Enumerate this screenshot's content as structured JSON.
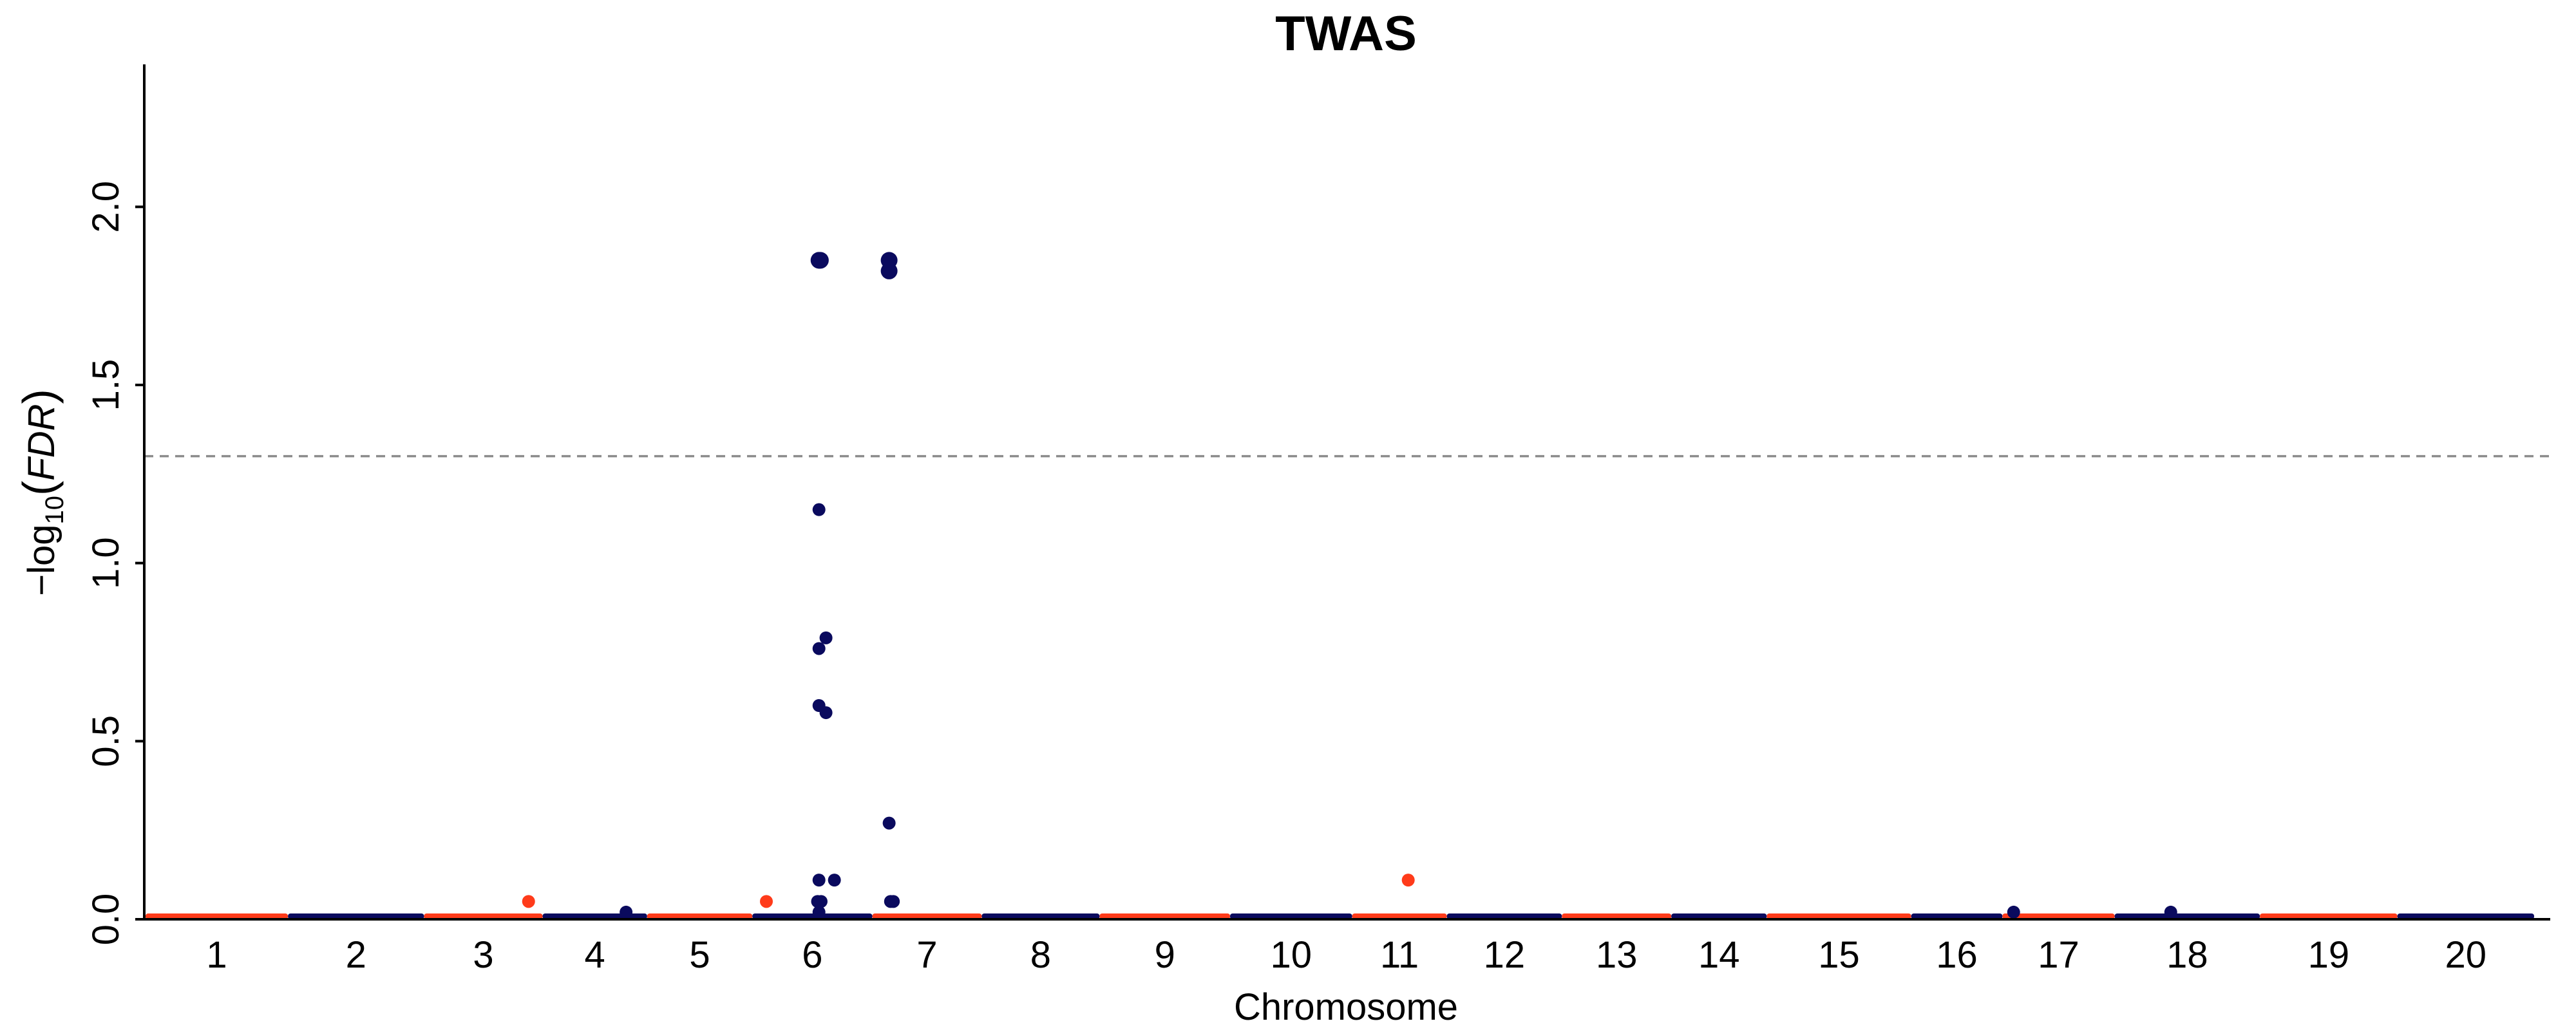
{
  "chart_data": {
    "type": "scatter",
    "title": "TWAS",
    "xlabel": "Chromosome",
    "ylabel_parts": {
      "prefix": "−log",
      "sub": "10",
      "paren_open": "(",
      "var": "FDR",
      "paren_close": ")"
    },
    "ylim": [
      0,
      2.4
    ],
    "yticks": [
      0.0,
      0.5,
      1.0,
      1.5,
      2.0
    ],
    "ytick_labels": [
      "0.0",
      "0.5",
      "1.0",
      "1.5",
      "2.0"
    ],
    "threshold": 1.3,
    "colors": {
      "odd": "#ff3b1a",
      "even": "#0a0a5e",
      "threshold": "#8c8c8c"
    },
    "xlim": [
      0,
      21.7
    ],
    "chromosomes": [
      {
        "label": "1",
        "start": 0.0,
        "end": 2.03
      },
      {
        "label": "2",
        "start": 2.03,
        "end": 3.97
      },
      {
        "label": "3",
        "start": 3.97,
        "end": 5.66
      },
      {
        "label": "4",
        "start": 5.66,
        "end": 7.15
      },
      {
        "label": "5",
        "start": 7.15,
        "end": 8.65
      },
      {
        "label": "6",
        "start": 8.65,
        "end": 10.36
      },
      {
        "label": "7",
        "start": 10.36,
        "end": 11.92
      },
      {
        "label": "8",
        "start": 11.92,
        "end": 13.6
      },
      {
        "label": "9",
        "start": 13.6,
        "end": 15.46
      },
      {
        "label": "10",
        "start": 15.46,
        "end": 17.2
      },
      {
        "label": "11",
        "start": 17.2,
        "end": 18.55
      },
      {
        "label": "12",
        "start": 18.55,
        "end": 20.19
      },
      {
        "label": "13",
        "start": 20.19,
        "end": 21.75
      },
      {
        "label": "14",
        "start": 21.75,
        "end": 23.11
      },
      {
        "label": "15",
        "start": 23.11,
        "end": 25.17
      },
      {
        "label": "16",
        "start": 25.17,
        "end": 26.47
      },
      {
        "label": "17",
        "start": 26.47,
        "end": 28.07
      },
      {
        "label": "18",
        "start": 28.07,
        "end": 30.14
      },
      {
        "label": "19",
        "start": 30.14,
        "end": 32.1
      },
      {
        "label": "20",
        "start": 32.1,
        "end": 34.05
      }
    ],
    "points": [
      {
        "chr": 6,
        "pos": 9.6,
        "y": 1.85,
        "size": "large"
      },
      {
        "chr": 6,
        "pos": 9.62,
        "y": 1.85,
        "size": "large"
      },
      {
        "chr": 6,
        "pos": 10.6,
        "y": 1.85,
        "size": "large"
      },
      {
        "chr": 6,
        "pos": 10.6,
        "y": 1.82,
        "size": "large"
      },
      {
        "chr": 6,
        "pos": 9.6,
        "y": 1.15,
        "size": "small"
      },
      {
        "chr": 6,
        "pos": 9.7,
        "y": 0.79,
        "size": "small"
      },
      {
        "chr": 6,
        "pos": 9.6,
        "y": 0.76,
        "size": "small"
      },
      {
        "chr": 6,
        "pos": 9.6,
        "y": 0.6,
        "size": "small"
      },
      {
        "chr": 6,
        "pos": 9.7,
        "y": 0.58,
        "size": "small"
      },
      {
        "chr": 6,
        "pos": 10.6,
        "y": 0.27,
        "size": "small"
      },
      {
        "chr": 6,
        "pos": 9.6,
        "y": 0.11,
        "size": "small"
      },
      {
        "chr": 6,
        "pos": 9.82,
        "y": 0.11,
        "size": "small"
      },
      {
        "chr": 6,
        "pos": 9.58,
        "y": 0.05,
        "size": "small"
      },
      {
        "chr": 6,
        "pos": 9.63,
        "y": 0.05,
        "size": "small"
      },
      {
        "chr": 6,
        "pos": 10.62,
        "y": 0.05,
        "size": "small"
      },
      {
        "chr": 6,
        "pos": 10.66,
        "y": 0.05,
        "size": "small"
      },
      {
        "chr": 6,
        "pos": 9.6,
        "y": 0.02,
        "size": "small"
      },
      {
        "chr": 3,
        "pos": 5.46,
        "y": 0.05,
        "size": "small"
      },
      {
        "chr": 5,
        "pos": 8.85,
        "y": 0.05,
        "size": "small"
      },
      {
        "chr": 4,
        "pos": 6.85,
        "y": 0.02,
        "size": "small"
      },
      {
        "chr": 11,
        "pos": 18.0,
        "y": 0.11,
        "size": "small"
      },
      {
        "chr": 16,
        "pos": 26.63,
        "y": 0.02,
        "size": "small"
      },
      {
        "chr": 18,
        "pos": 28.87,
        "y": 0.02,
        "size": "small"
      }
    ]
  }
}
